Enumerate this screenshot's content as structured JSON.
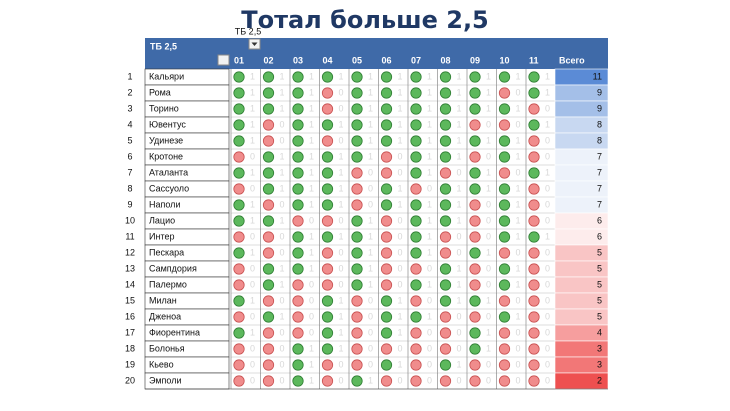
{
  "header": {
    "title": "Тотал больше 2,5",
    "filter_label": "ТБ 2,5"
  },
  "table": {
    "corner": "ТБ 2,5",
    "columns": [
      "01",
      "02",
      "03",
      "04",
      "05",
      "06",
      "07",
      "08",
      "09",
      "10",
      "11"
    ],
    "total_header": "Всего",
    "rows": [
      {
        "num": 1,
        "team": "Кальяри",
        "results": [
          1,
          1,
          1,
          1,
          1,
          1,
          1,
          1,
          1,
          1,
          1
        ],
        "total": 11
      },
      {
        "num": 2,
        "team": "Рома",
        "results": [
          1,
          1,
          1,
          0,
          1,
          1,
          1,
          1,
          1,
          0,
          1
        ],
        "total": 9
      },
      {
        "num": 3,
        "team": "Торино",
        "results": [
          1,
          1,
          1,
          0,
          1,
          1,
          1,
          1,
          1,
          1,
          0
        ],
        "total": 9
      },
      {
        "num": 4,
        "team": "Ювентус",
        "results": [
          1,
          0,
          1,
          1,
          1,
          1,
          1,
          1,
          0,
          0,
          1
        ],
        "total": 8
      },
      {
        "num": 5,
        "team": "Удинезе",
        "results": [
          1,
          0,
          1,
          0,
          1,
          1,
          1,
          1,
          1,
          1,
          0
        ],
        "total": 8
      },
      {
        "num": 6,
        "team": "Кротоне",
        "results": [
          0,
          1,
          1,
          1,
          1,
          0,
          1,
          1,
          0,
          1,
          0
        ],
        "total": 7
      },
      {
        "num": 7,
        "team": "Аталанта",
        "results": [
          1,
          1,
          1,
          1,
          0,
          0,
          1,
          0,
          1,
          0,
          1
        ],
        "total": 7
      },
      {
        "num": 8,
        "team": "Сассуоло",
        "results": [
          0,
          1,
          1,
          1,
          0,
          1,
          0,
          1,
          1,
          1,
          0
        ],
        "total": 7
      },
      {
        "num": 9,
        "team": "Наполи",
        "results": [
          1,
          0,
          1,
          1,
          0,
          1,
          1,
          1,
          0,
          1,
          0
        ],
        "total": 7
      },
      {
        "num": 10,
        "team": "Лацио",
        "results": [
          1,
          1,
          0,
          0,
          1,
          0,
          1,
          1,
          0,
          1,
          0
        ],
        "total": 6
      },
      {
        "num": 11,
        "team": "Интер",
        "results": [
          0,
          0,
          1,
          1,
          1,
          0,
          1,
          0,
          0,
          1,
          1
        ],
        "total": 6
      },
      {
        "num": 12,
        "team": "Пескара",
        "results": [
          1,
          0,
          1,
          0,
          1,
          0,
          1,
          0,
          1,
          0,
          0
        ],
        "total": 5
      },
      {
        "num": 13,
        "team": "Сампдория",
        "results": [
          0,
          1,
          1,
          0,
          1,
          0,
          0,
          1,
          0,
          1,
          0
        ],
        "total": 5
      },
      {
        "num": 14,
        "team": "Палермо",
        "results": [
          0,
          1,
          0,
          0,
          1,
          0,
          1,
          1,
          0,
          1,
          0
        ],
        "total": 5
      },
      {
        "num": 15,
        "team": "Милан",
        "results": [
          1,
          0,
          0,
          1,
          0,
          1,
          0,
          1,
          1,
          0,
          0
        ],
        "total": 5
      },
      {
        "num": 16,
        "team": "Дженоа",
        "results": [
          0,
          1,
          0,
          1,
          0,
          1,
          1,
          0,
          0,
          1,
          0
        ],
        "total": 5
      },
      {
        "num": 17,
        "team": "Фиорентина",
        "results": [
          1,
          0,
          0,
          1,
          0,
          1,
          0,
          0,
          1,
          0,
          0
        ],
        "total": 4
      },
      {
        "num": 18,
        "team": "Болонья",
        "results": [
          0,
          0,
          1,
          1,
          0,
          0,
          0,
          0,
          1,
          0,
          0
        ],
        "total": 3
      },
      {
        "num": 19,
        "team": "Кьево",
        "results": [
          0,
          0,
          1,
          0,
          0,
          1,
          0,
          1,
          0,
          0,
          0
        ],
        "total": 3
      },
      {
        "num": 20,
        "team": "Эмполи",
        "results": [
          0,
          0,
          1,
          0,
          1,
          0,
          0,
          0,
          0,
          0,
          0
        ],
        "total": 2
      }
    ]
  }
}
